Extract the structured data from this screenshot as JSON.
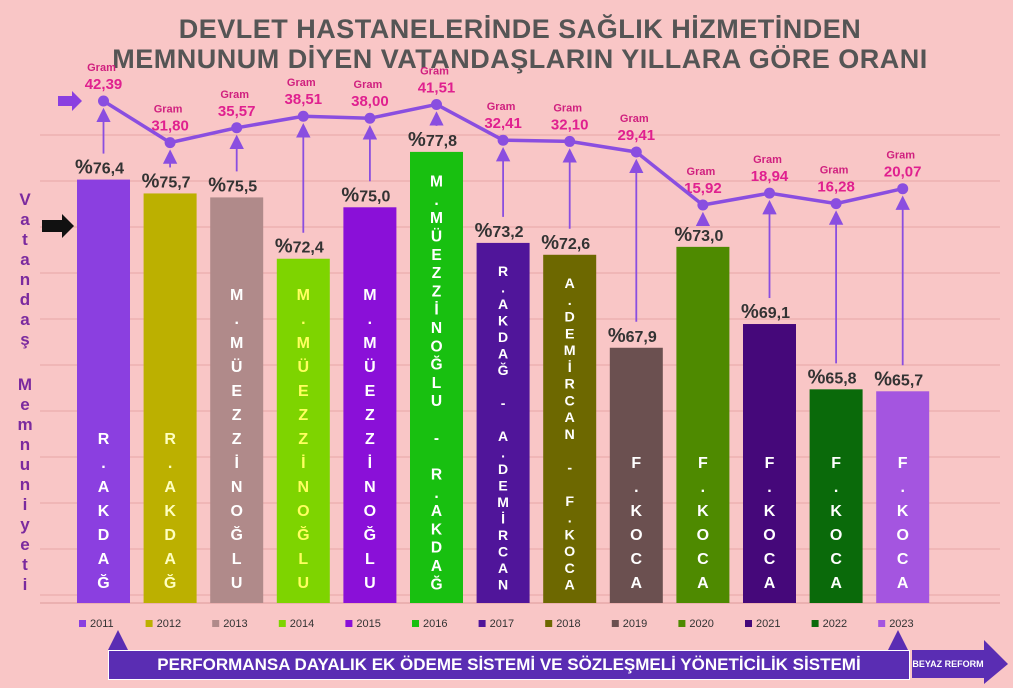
{
  "title_line1": "DEVLET HASTANELERİNDE SAĞLIK HİZMETİNDEN",
  "title_line2": "MEMNUNUM DİYEN VATANDAŞLARIN YILLARA GÖRE ORANI",
  "vertical_label_1": "Vatandaş",
  "vertical_label_2": "Memnuniyeti",
  "footer_text": "PERFORMANSA DAYALIK EK ÖDEME SİSTEMİ VE SÖZLEŞMELİ YÖNETİCİLİK SİSTEMİ",
  "footer_badge": "BEYAZ REFORM",
  "bar_prefix": "%",
  "gram_label": "Gram",
  "colors": {
    "line": "#8a4ee0",
    "gram_text": "#e0208f",
    "gram_word": "#d0207f",
    "arrow": "#8a4ee0",
    "background": "#f9c6c6"
  },
  "chart_data": {
    "type": "bar",
    "categories": [
      "2011",
      "2012",
      "2013",
      "2014",
      "2015",
      "2016",
      "2017",
      "2018",
      "2019",
      "2020",
      "2021",
      "2022",
      "2023"
    ],
    "series": [
      {
        "values": [
          76.4,
          75.7,
          75.5,
          72.4,
          75.0,
          77.8,
          73.2,
          72.6,
          67.9,
          73.0,
          69.1,
          65.8,
          65.7
        ],
        "value_labels": [
          "76,4",
          "75,7",
          "75,5",
          "72,4",
          "75,0",
          "77,8",
          "73,2",
          "72,6",
          "67,9",
          "73,0",
          "69,1",
          "65,8",
          "65,7"
        ],
        "colors": [
          "#8b3fe0",
          "#bcb000",
          "#b08a8a",
          "#7ed400",
          "#8a10d8",
          "#18c010",
          "#50159a",
          "#6d6800",
          "#6b5050",
          "#4e8a00",
          "#45087a",
          "#0a6a0a",
          "#a455e0"
        ],
        "bar_text": [
          "R.AKDAĞ",
          "R.AKDAĞ",
          "M.MÜEZZİNOĞLU",
          "M.MÜEZZİNOĞLU",
          "M.MÜEZZİNOĞLU",
          "M.MÜEZZİNOĞLU - R.AKDAĞ",
          "R.AKDAĞ - A.DEMİRCAN",
          "A.DEMİRCAN - F.KOCA",
          "F.KOCA",
          "F.KOCA",
          "F.KOCA",
          "F.KOCA",
          "F.KOCA"
        ]
      },
      {
        "type": "line",
        "values": [
          42.39,
          31.8,
          35.57,
          38.51,
          38.0,
          41.51,
          32.41,
          32.1,
          29.41,
          15.92,
          18.94,
          16.28,
          20.07
        ],
        "value_labels": [
          "42,39",
          "31,80",
          "35,57",
          "38,51",
          "38,00",
          "41,51",
          "32,41",
          "32,10",
          "29,41",
          "15,92",
          "18,94",
          "16,28",
          "20,07"
        ]
      }
    ],
    "legend_position": "bottom",
    "grid": true
  }
}
